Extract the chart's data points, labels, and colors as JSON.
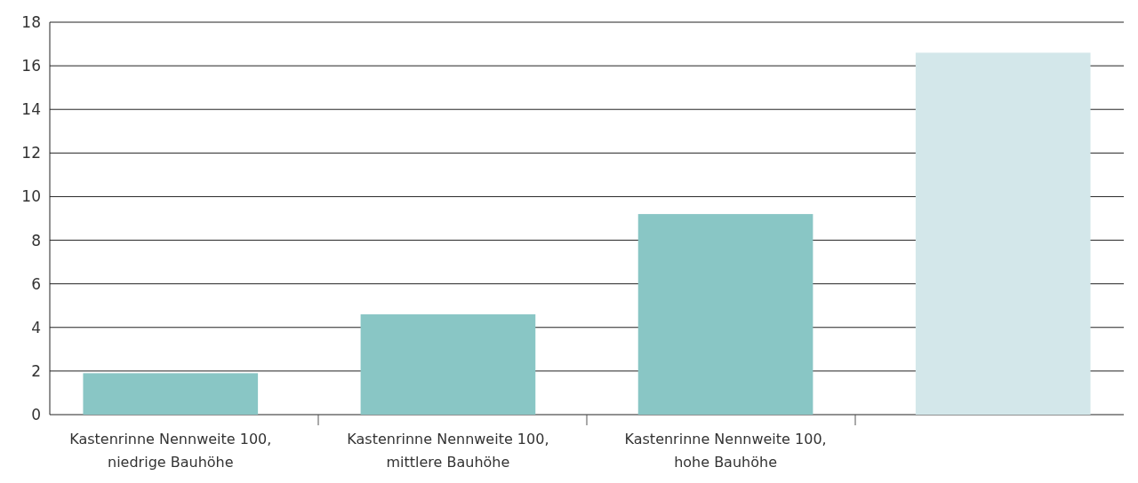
{
  "chart_data": {
    "type": "bar",
    "categories": [
      "Kastenrinne Nennweite 100, niedrige Bauhöhe",
      "Kastenrinne Nennweite 100, mittlere Bauhöhe",
      "Kastenrinne Nennweite 100, hohe Bauhöhe",
      null
    ],
    "values": [
      1.9,
      4.6,
      9.2,
      16.6
    ],
    "colors": [
      "#89c6c5",
      "#89c6c5",
      "#89c6c5",
      "#d3e7ea"
    ],
    "ylim": [
      0,
      18
    ],
    "yticks": [
      0,
      2,
      4,
      6,
      8,
      10,
      12,
      14,
      16,
      18
    ],
    "grid": "y"
  }
}
